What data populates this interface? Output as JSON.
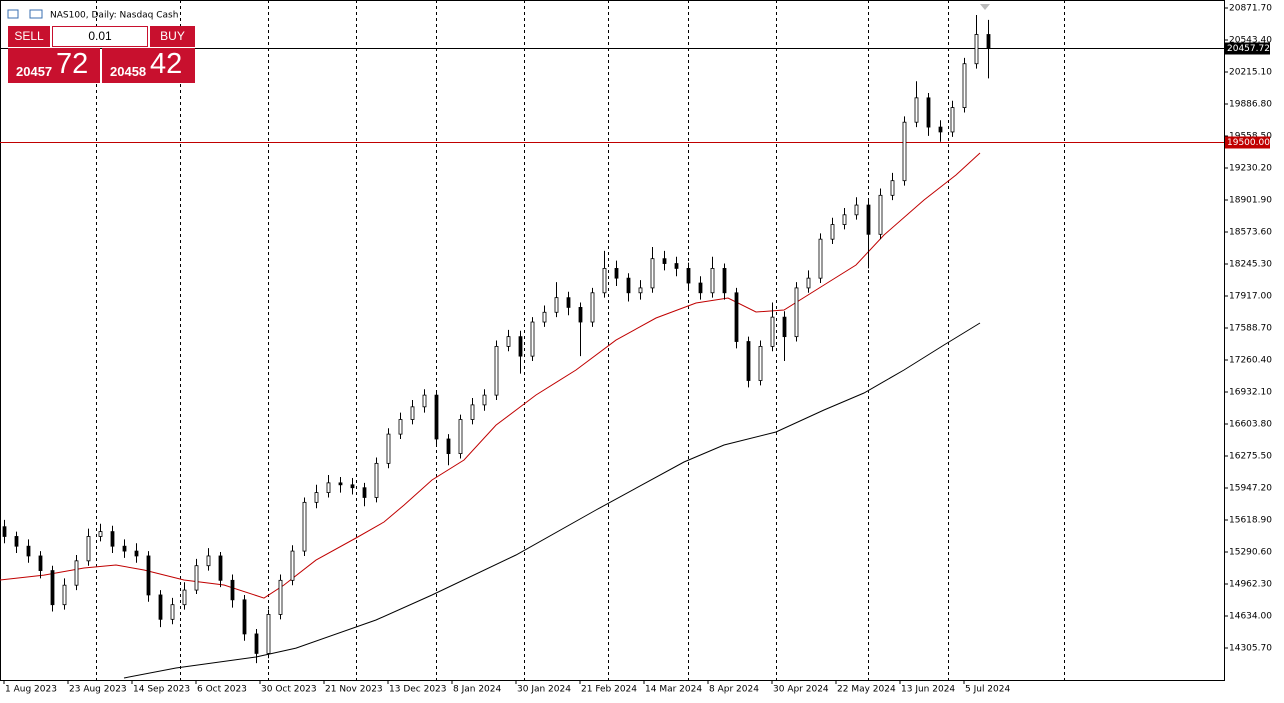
{
  "chart_data": {
    "type": "candlestick",
    "title": "NAS100, Daily:  Nasdaq Cash",
    "up_color": "#ffffff",
    "down_color": "#000000",
    "candles": {
      "x": [
        0,
        3,
        6,
        9,
        12,
        15,
        18,
        21,
        24,
        27,
        30,
        33,
        36,
        39,
        42,
        45,
        48,
        51,
        54,
        57,
        60,
        63,
        66,
        69,
        72,
        75,
        78,
        81,
        84,
        87,
        90,
        93,
        96,
        99,
        102,
        105,
        108,
        111,
        114,
        117,
        120,
        123,
        126,
        129,
        132,
        135,
        138,
        141,
        144,
        147,
        150,
        153,
        156,
        159,
        162,
        165,
        168,
        171,
        174,
        177,
        180,
        183,
        186,
        189,
        192,
        195,
        198,
        201,
        204,
        207,
        210,
        213,
        216,
        219,
        222,
        225,
        228,
        231,
        234,
        237,
        240,
        243,
        246
      ],
      "open": [
        15550,
        15450,
        15350,
        15250,
        15100,
        14750,
        14950,
        15200,
        15450,
        15500,
        15350,
        15300,
        15250,
        14850,
        14600,
        14750,
        14900,
        15150,
        15250,
        15000,
        14800,
        14450,
        14250,
        14650,
        15000,
        15300,
        15800,
        15900,
        16000,
        15980,
        15950,
        15850,
        16200,
        16500,
        16650,
        16780,
        16900,
        16450,
        16300,
        16650,
        16800,
        16900,
        17400,
        17500,
        17300,
        17650,
        17750,
        17900,
        17800,
        17650,
        17950,
        18200,
        18100,
        17950,
        18000,
        18300,
        18250,
        18200,
        18050,
        17950,
        18200,
        17950,
        17450,
        17050,
        17400,
        17700,
        17500,
        18000,
        18100,
        18500,
        18650,
        18750,
        18850,
        18550,
        18950,
        19100,
        19700,
        19950,
        19650,
        19600,
        19850,
        20300,
        20600
      ],
      "high": [
        15620,
        15500,
        15420,
        15300,
        15150,
        15020,
        15260,
        15530,
        15580,
        15560,
        15420,
        15380,
        15300,
        14900,
        14820,
        14980,
        15220,
        15330,
        15290,
        15060,
        14850,
        14500,
        14700,
        15060,
        15360,
        15850,
        15980,
        16080,
        16060,
        16050,
        16000,
        16260,
        16560,
        16720,
        16850,
        16960,
        16940,
        16500,
        16700,
        16870,
        16960,
        17460,
        17570,
        17560,
        17700,
        17820,
        18060,
        17960,
        17850,
        18000,
        18380,
        18280,
        18150,
        18080,
        18420,
        18380,
        18320,
        18260,
        18120,
        18320,
        18250,
        18000,
        17500,
        17460,
        17850,
        17760,
        18060,
        18180,
        18560,
        18720,
        18820,
        18930,
        18900,
        19020,
        19180,
        19760,
        20120,
        20000,
        19720,
        19920,
        20360,
        20800,
        20750
      ],
      "low": [
        15380,
        15280,
        15180,
        15020,
        14680,
        14700,
        14900,
        15150,
        15400,
        15280,
        15230,
        15180,
        14780,
        14520,
        14550,
        14700,
        14860,
        15100,
        14930,
        14720,
        14380,
        14150,
        14200,
        14600,
        14950,
        15250,
        15740,
        15850,
        15900,
        15880,
        15760,
        15800,
        16150,
        16450,
        16600,
        16720,
        16380,
        16180,
        16250,
        16600,
        16740,
        16850,
        17350,
        17120,
        17250,
        17600,
        17700,
        17720,
        17300,
        17600,
        17900,
        18020,
        17860,
        17880,
        17950,
        18180,
        18120,
        17980,
        17880,
        17900,
        17880,
        17380,
        16980,
        17000,
        17350,
        17250,
        17450,
        17950,
        18050,
        18450,
        18600,
        18700,
        18200,
        18500,
        18900,
        19050,
        19650,
        19560,
        19500,
        19550,
        19800,
        20250,
        20150
      ],
      "close": [
        15450,
        15350,
        15250,
        15100,
        14750,
        14950,
        15200,
        15450,
        15500,
        15350,
        15300,
        15250,
        14850,
        14600,
        14750,
        14900,
        15150,
        15250,
        15000,
        14800,
        14450,
        14250,
        14650,
        15000,
        15300,
        15800,
        15900,
        16000,
        15980,
        15950,
        15850,
        16200,
        16500,
        16650,
        16780,
        16900,
        16450,
        16300,
        16650,
        16800,
        16900,
        17400,
        17500,
        17300,
        17650,
        17750,
        17900,
        17800,
        17650,
        17950,
        18200,
        18100,
        17950,
        18000,
        18300,
        18250,
        18200,
        18050,
        17950,
        18200,
        17950,
        17450,
        17050,
        17400,
        17700,
        17500,
        18000,
        18100,
        18500,
        18650,
        18750,
        18850,
        18550,
        18950,
        19100,
        19700,
        19950,
        19650,
        19600,
        19850,
        20300,
        20600,
        20457.72
      ]
    },
    "series": [
      {
        "color": "#c00000",
        "x": [
          -1,
          10,
          20,
          28,
          35,
          45,
          55,
          65,
          70,
          78,
          88,
          95,
          100,
          107,
          115,
          123,
          133,
          143,
          153,
          163,
          173,
          181,
          188,
          195,
          205,
          213,
          220,
          230,
          238,
          244
        ],
        "values": [
          15003,
          15054,
          15126,
          15157,
          15106,
          15003,
          14952,
          14818,
          14952,
          15208,
          15434,
          15598,
          15772,
          16029,
          16234,
          16593,
          16901,
          17158,
          17465,
          17691,
          17845,
          17896,
          17753,
          17773,
          18030,
          18235,
          18543,
          18902,
          19158,
          19384
        ]
      },
      {
        "color": "#000000",
        "x": [
          30,
          43,
          63,
          73,
          93,
          107,
          128,
          148,
          170,
          180,
          193,
          205,
          215,
          225,
          235,
          244
        ],
        "values": [
          13998,
          14100,
          14213,
          14305,
          14593,
          14849,
          15260,
          15721,
          16214,
          16388,
          16522,
          16747,
          16922,
          17158,
          17414,
          17640
        ]
      }
    ],
    "hlines": [
      {
        "value": 20457.72,
        "label": "20457.72",
        "color": "#000000"
      },
      {
        "value": 19500,
        "label": "19500.00",
        "color": "#c00000"
      }
    ],
    "month_lines": [
      23,
      44,
      66,
      88,
      108,
      130,
      151,
      171,
      193,
      216,
      236,
      265
    ],
    "xlim": [
      -1,
      305
    ],
    "ylim": [
      13977.4,
      20953.8
    ],
    "xticks": [
      {
        "value": 0,
        "label": "1 Aug 2023"
      },
      {
        "value": 16,
        "label": "23 Aug 2023"
      },
      {
        "value": 32,
        "label": "14 Sep 2023"
      },
      {
        "value": 48,
        "label": "6 Oct 2023"
      },
      {
        "value": 64,
        "label": "30 Oct 2023"
      },
      {
        "value": 80,
        "label": "21 Nov 2023"
      },
      {
        "value": 96,
        "label": "13 Dec 2023"
      },
      {
        "value": 112,
        "label": "8 Jan 2024"
      },
      {
        "value": 128,
        "label": "30 Jan 2024"
      },
      {
        "value": 144,
        "label": "21 Feb 2024"
      },
      {
        "value": 160,
        "label": "14 Mar 2024"
      },
      {
        "value": 176,
        "label": "8 Apr 2024"
      },
      {
        "value": 192,
        "label": "30 Apr 2024"
      },
      {
        "value": 208,
        "label": "22 May 2024"
      },
      {
        "value": 224,
        "label": "13 Jun 2024"
      },
      {
        "value": 240,
        "label": "5 Jul 2024"
      }
    ],
    "yticks": [
      {
        "value": 20871.7,
        "label": "20871.70"
      },
      {
        "value": 20543.4,
        "label": "20543.40"
      },
      {
        "value": 20215.1,
        "label": "20215.10"
      },
      {
        "value": 19886.8,
        "label": "19886.80"
      },
      {
        "value": 19558.5,
        "label": "19558.50"
      },
      {
        "value": 19230.2,
        "label": "19230.20"
      },
      {
        "value": 18901.9,
        "label": "18901.90"
      },
      {
        "value": 18573.6,
        "label": "18573.60"
      },
      {
        "value": 18245.3,
        "label": "18245.30"
      },
      {
        "value": 17917,
        "label": "17917.00"
      },
      {
        "value": 17588.7,
        "label": "17588.70"
      },
      {
        "value": 17260.4,
        "label": "17260.40"
      },
      {
        "value": 16932.1,
        "label": "16932.10"
      },
      {
        "value": 16603.8,
        "label": "16603.80"
      },
      {
        "value": 16275.5,
        "label": "16275.50"
      },
      {
        "value": 15947.2,
        "label": "15947.20"
      },
      {
        "value": 15618.9,
        "label": "15618.90"
      },
      {
        "value": 15290.6,
        "label": "15290.60"
      },
      {
        "value": 14962.3,
        "label": "14962.30"
      },
      {
        "value": 14634,
        "label": "14634.00"
      },
      {
        "value": 14305.7,
        "label": "14305.70"
      }
    ]
  },
  "trade_panel": {
    "sell": "SELL",
    "buy": "BUY",
    "lot": "0.01",
    "sell_main": "20457",
    "sell_big": "72",
    "buy_main": "20458",
    "buy_big": "42"
  }
}
